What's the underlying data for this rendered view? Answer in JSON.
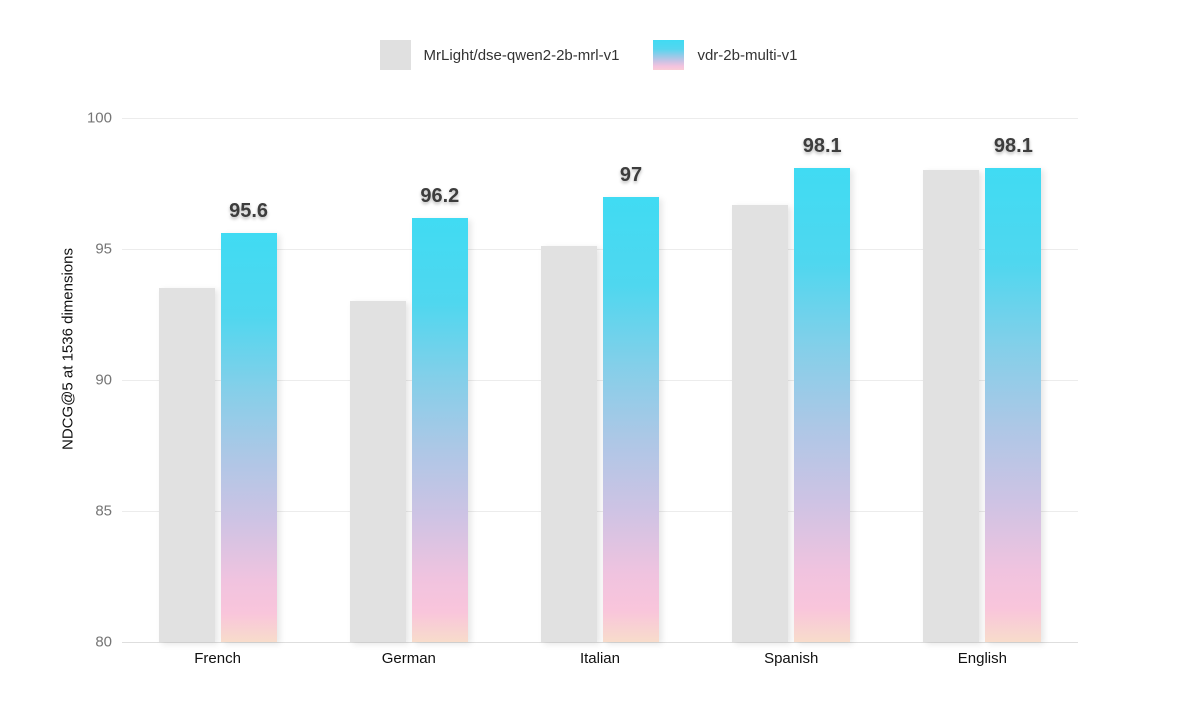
{
  "legend": {
    "items": [
      {
        "label": "MrLight/dse-qwen2-2b-mrl-v1",
        "swatch": "gray-square"
      },
      {
        "label": "vdr-2b-multi-v1",
        "swatch": "cyan-pink-gradient-square"
      }
    ]
  },
  "chart_data": {
    "type": "bar",
    "title": "",
    "xlabel": "",
    "ylabel": "NDCG@5 at 1536 dimensions",
    "categories": [
      "French",
      "German",
      "Italian",
      "Spanish",
      "English"
    ],
    "series": [
      {
        "name": "MrLight/dse-qwen2-2b-mrl-v1",
        "values": [
          93.5,
          93.0,
          95.1,
          96.7,
          98.0
        ],
        "color": "#e1e1e1",
        "value_labels_shown": false
      },
      {
        "name": "vdr-2b-multi-v1",
        "values": [
          95.6,
          96.2,
          97,
          98.1,
          98.1
        ],
        "value_labels": [
          "95.6",
          "96.2",
          "97",
          "98.1",
          "98.1"
        ],
        "gradient": [
          "#40dbf3",
          "#84cfe9",
          "#cdc3e4",
          "#f9c5db",
          "#f8dccb"
        ],
        "value_labels_shown": true
      }
    ],
    "ylim": [
      80,
      100
    ],
    "yticks": [
      100,
      95,
      90,
      85,
      80
    ],
    "grid": true,
    "legend_position": "top"
  },
  "colors": {
    "background": "#ffffff",
    "bar_gray": "#e1e1e1",
    "bar_cyan_top": "#40dbf3",
    "bar_pink_bottom": "#f9c5db",
    "bar_peach_bottom": "#f8dccb",
    "grid_line": "#ececec",
    "baseline": "#dedede",
    "tick_label": "#757575",
    "category_label": "#111111",
    "value_label": "#3d3d3d",
    "legend_text": "#333333"
  }
}
